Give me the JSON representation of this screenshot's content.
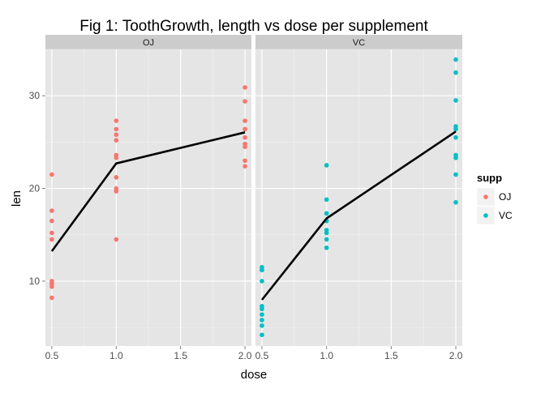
{
  "chart_data": {
    "type": "scatter",
    "title": "Fig 1: ToothGrowth, length vs dose per supplement",
    "xlabel": "dose",
    "ylabel": "len",
    "xlim": [
      0.45,
      2.05
    ],
    "ylim": [
      3,
      35
    ],
    "x_ticks": [
      0.5,
      1.0,
      1.5,
      2.0
    ],
    "x_tick_labels": [
      "0.5",
      "1.0",
      "1.5",
      "2.0"
    ],
    "y_ticks": [
      10,
      20,
      30
    ],
    "y_tick_labels": [
      "10",
      "20",
      "30"
    ],
    "grid": true,
    "legend": {
      "title": "supp",
      "position": "right",
      "entries": [
        {
          "label": "OJ",
          "color": "#F8766D"
        },
        {
          "label": "VC",
          "color": "#00BFC4"
        }
      ]
    },
    "panels": [
      {
        "strip": "OJ",
        "series": "OJ",
        "color": "#F8766D",
        "points": [
          [
            0.5,
            15.2
          ],
          [
            0.5,
            21.5
          ],
          [
            0.5,
            17.6
          ],
          [
            0.5,
            9.7
          ],
          [
            0.5,
            14.5
          ],
          [
            0.5,
            10.0
          ],
          [
            0.5,
            8.2
          ],
          [
            0.5,
            9.4
          ],
          [
            0.5,
            16.5
          ],
          [
            0.5,
            9.7
          ],
          [
            1.0,
            19.7
          ],
          [
            1.0,
            23.3
          ],
          [
            1.0,
            23.6
          ],
          [
            1.0,
            26.4
          ],
          [
            1.0,
            20.0
          ],
          [
            1.0,
            25.2
          ],
          [
            1.0,
            25.8
          ],
          [
            1.0,
            21.2
          ],
          [
            1.0,
            14.5
          ],
          [
            1.0,
            27.3
          ],
          [
            2.0,
            25.5
          ],
          [
            2.0,
            26.4
          ],
          [
            2.0,
            22.4
          ],
          [
            2.0,
            24.5
          ],
          [
            2.0,
            24.8
          ],
          [
            2.0,
            30.9
          ],
          [
            2.0,
            26.4
          ],
          [
            2.0,
            27.3
          ],
          [
            2.0,
            29.4
          ],
          [
            2.0,
            23.0
          ]
        ],
        "mean_line": [
          [
            0.5,
            13.23
          ],
          [
            1.0,
            22.7
          ],
          [
            2.0,
            26.06
          ]
        ]
      },
      {
        "strip": "VC",
        "series": "VC",
        "color": "#00BFC4",
        "points": [
          [
            0.5,
            4.2
          ],
          [
            0.5,
            11.5
          ],
          [
            0.5,
            7.3
          ],
          [
            0.5,
            5.8
          ],
          [
            0.5,
            6.4
          ],
          [
            0.5,
            10.0
          ],
          [
            0.5,
            11.2
          ],
          [
            0.5,
            11.2
          ],
          [
            0.5,
            5.2
          ],
          [
            0.5,
            7.0
          ],
          [
            1.0,
            16.5
          ],
          [
            1.0,
            16.5
          ],
          [
            1.0,
            15.2
          ],
          [
            1.0,
            17.3
          ],
          [
            1.0,
            22.5
          ],
          [
            1.0,
            17.3
          ],
          [
            1.0,
            13.6
          ],
          [
            1.0,
            14.5
          ],
          [
            1.0,
            18.8
          ],
          [
            1.0,
            15.5
          ],
          [
            2.0,
            23.6
          ],
          [
            2.0,
            18.5
          ],
          [
            2.0,
            33.9
          ],
          [
            2.0,
            25.5
          ],
          [
            2.0,
            26.4
          ],
          [
            2.0,
            32.5
          ],
          [
            2.0,
            26.7
          ],
          [
            2.0,
            21.5
          ],
          [
            2.0,
            23.3
          ],
          [
            2.0,
            29.5
          ]
        ],
        "mean_line": [
          [
            0.5,
            7.98
          ],
          [
            1.0,
            16.77
          ],
          [
            2.0,
            26.14
          ]
        ]
      }
    ]
  }
}
